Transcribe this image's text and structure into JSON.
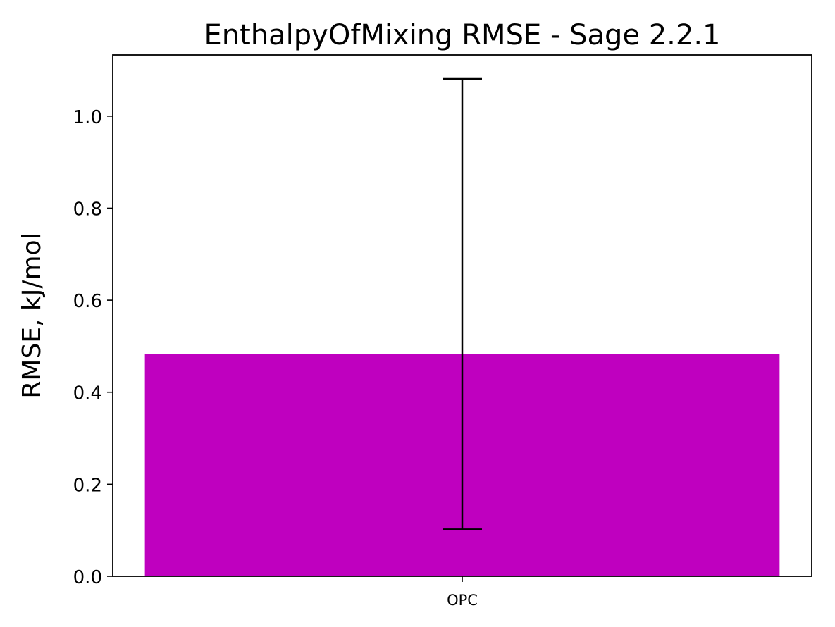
{
  "chart_data": {
    "type": "bar",
    "title": "EnthalpyOfMixing RMSE - Sage 2.2.1",
    "xlabel": "",
    "ylabel": "RMSE, kJ/mol",
    "categories": [
      "OPC"
    ],
    "values": [
      0.483
    ],
    "error_low": [
      0.102
    ],
    "error_high": [
      1.081
    ],
    "ylim": [
      0,
      1.133
    ],
    "yticks": [
      0.0,
      0.2,
      0.4,
      0.6,
      0.8,
      1.0
    ],
    "ytick_labels": [
      "0.0",
      "0.2",
      "0.4",
      "0.6",
      "0.8",
      "1.0"
    ],
    "bar_color": "#bf00bf",
    "errorbar_color": "#000000",
    "grid": false,
    "legend": "none"
  }
}
